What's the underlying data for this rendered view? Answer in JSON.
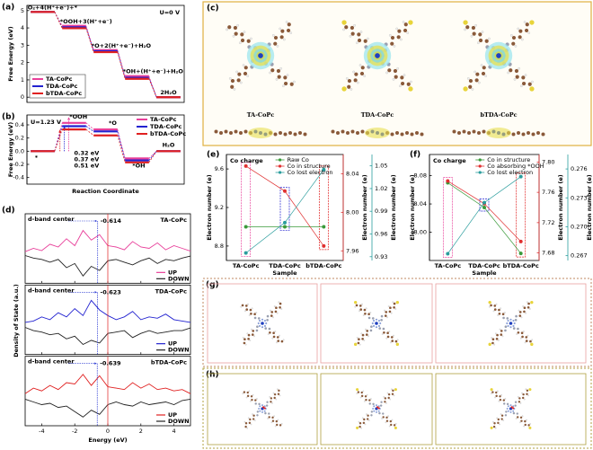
{
  "chart_data": [
    {
      "type": "step",
      "label": "(a)",
      "annotation": "U=0 V",
      "ylabel": "Free Energy (eV)",
      "ylim": [
        -0.3,
        5.3
      ],
      "yticks": [
        0,
        1,
        2,
        3,
        4,
        5
      ],
      "step_labels": [
        "O₂+4(H⁺+e⁻)+*",
        "*OOH+3(H⁺+e⁻)",
        "*O+2(H⁺+e⁻)+H₂O",
        "*OH+(H⁺+e⁻)+H₂O",
        "2H₂O"
      ],
      "series": [
        {
          "name": "TA-CoPc",
          "color": "#e8409a",
          "values": [
            4.92,
            4.12,
            2.72,
            1.22,
            0
          ]
        },
        {
          "name": "TDA-CoPc",
          "color": "#2222d0",
          "values": [
            4.92,
            4.04,
            2.66,
            1.12,
            0
          ]
        },
        {
          "name": "bTDA-CoPc",
          "color": "#e02020",
          "values": [
            4.92,
            3.98,
            2.6,
            1.06,
            0
          ]
        }
      ]
    },
    {
      "type": "step",
      "label": "(b)",
      "annotation": "U=1.23 V",
      "ylabel": "Free Energy (eV)",
      "xlabel": "Reaction Coordinate",
      "ylim": [
        -0.5,
        0.55
      ],
      "yticks": [
        -0.4,
        -0.2,
        {
          "value": 0,
          "label": "0.0"
        },
        0.2,
        0.4
      ],
      "step_labels": [
        "*",
        "*OOH",
        "*O",
        "*OH",
        "H₂O"
      ],
      "series": [
        {
          "name": "TA-CoPc",
          "color": "#e8409a",
          "values": [
            0,
            0.43,
            0.33,
            -0.11,
            0
          ],
          "overpotential": 0.51,
          "overpotential_label": "0.51 eV"
        },
        {
          "name": "TDA-CoPc",
          "color": "#2222d0",
          "values": [
            0,
            0.38,
            0.3,
            -0.14,
            0
          ],
          "overpotential": 0.37,
          "overpotential_label": "0.37 eV"
        },
        {
          "name": "bTDA-CoPc",
          "color": "#e02020",
          "values": [
            0,
            0.33,
            0.24,
            -0.17,
            0
          ],
          "overpotential": 0.32,
          "overpotential_label": "0.32 eV"
        }
      ]
    },
    {
      "type": "dos",
      "label": "(d)",
      "annotation": "d-band center",
      "xlabel": "Energy (eV)",
      "ylabel": "Density of State (a.u.)",
      "x": [
        -5,
        -4.5,
        -4,
        -3.5,
        -3,
        -2.5,
        -2,
        -1.5,
        -1,
        -0.5,
        0,
        0.5,
        1,
        1.5,
        2,
        2.5,
        3,
        3.5,
        4,
        4.5,
        5
      ],
      "xlim": [
        -5,
        5
      ],
      "xticks": [
        -4,
        -2,
        0,
        2,
        4
      ],
      "ylim": [
        -1,
        1
      ],
      "fermi_level": 0,
      "fermi_color": "#e02020",
      "center_color": "#2030d0",
      "up_label": "UP",
      "down_label": "DOWN",
      "down_color": "#222222",
      "panels": [
        {
          "name": "TA-CoPc",
          "color": "#e8409a",
          "d_band_center": -0.614,
          "up": [
            0.08,
            0.2,
            0.12,
            0.35,
            0.25,
            0.55,
            0.3,
            0.85,
            0.5,
            0.7,
            0.3,
            0.25,
            0.15,
            0.45,
            0.25,
            0.2,
            0.4,
            0.15,
            0.3,
            0.2,
            0.1
          ],
          "down": [
            -0.06,
            -0.15,
            -0.2,
            -0.3,
            -0.2,
            -0.5,
            -0.35,
            -0.8,
            -0.45,
            -0.6,
            -0.25,
            -0.2,
            -0.3,
            -0.4,
            -0.25,
            -0.15,
            -0.35,
            -0.2,
            -0.25,
            -0.15,
            -0.08
          ]
        },
        {
          "name": "TDA-CoPc",
          "color": "#2222d0",
          "d_band_center": -0.623,
          "up": [
            0.1,
            0.15,
            0.3,
            0.2,
            0.45,
            0.3,
            0.6,
            0.35,
            0.9,
            0.55,
            0.35,
            0.2,
            0.3,
            0.5,
            0.2,
            0.3,
            0.25,
            0.4,
            0.2,
            0.15,
            0.1
          ],
          "down": [
            -0.08,
            -0.2,
            -0.25,
            -0.35,
            -0.3,
            -0.5,
            -0.4,
            -0.7,
            -0.55,
            -0.65,
            -0.3,
            -0.25,
            -0.2,
            -0.45,
            -0.3,
            -0.2,
            -0.3,
            -0.25,
            -0.2,
            -0.2,
            -0.1
          ]
        },
        {
          "name": "bTDA-CoPc",
          "color": "#e02020",
          "d_band_center": -0.639,
          "up": [
            0.1,
            0.3,
            0.2,
            0.4,
            0.25,
            0.5,
            0.45,
            0.8,
            0.4,
            0.75,
            0.35,
            0.3,
            0.25,
            0.5,
            0.3,
            0.45,
            0.25,
            0.3,
            0.2,
            0.25,
            0.1
          ],
          "down": [
            -0.1,
            -0.2,
            -0.3,
            -0.25,
            -0.4,
            -0.35,
            -0.55,
            -0.75,
            -0.5,
            -0.65,
            -0.3,
            -0.2,
            -0.3,
            -0.35,
            -0.2,
            -0.3,
            -0.25,
            -0.2,
            -0.3,
            -0.15,
            -0.1
          ]
        }
      ]
    },
    {
      "type": "multi_axis_line",
      "label": "(e)",
      "annotation": "Co charge",
      "xlabel": "Sample",
      "categories": [
        "TA-CoPc",
        "TDA-CoPc",
        "bTDA-CoPc"
      ],
      "category_colors": [
        "#e8409a",
        "#2222d0",
        "#e02020"
      ],
      "ylabel": "Electron number (e)",
      "y2label": "Electron number (e)",
      "y3label": "Electron number (e)",
      "ylim": [
        8.65,
        9.75
      ],
      "yticks": [
        8.8,
        9.2,
        9.6
      ],
      "y2lim": [
        7.95,
        8.06
      ],
      "y2ticks": [
        7.96,
        {
          "value": 8,
          "label": "8.00"
        },
        8.04
      ],
      "y3lim": [
        0.925,
        1.065
      ],
      "y3ticks": [
        0.93,
        0.96,
        0.99,
        1.02,
        1.05
      ],
      "series": [
        {
          "name": "Raw Co",
          "color": "#3a9a3a",
          "axis": "y",
          "values": [
            9,
            9,
            9
          ]
        },
        {
          "name": "Co in structure",
          "color": "#e03030",
          "axis": "y2",
          "values": [
            8.048,
            8.022,
            7.965
          ]
        },
        {
          "name": "Co lost electron",
          "color": "#2a9d9d",
          "axis": "y3",
          "values": [
            0.935,
            0.975,
            1.045
          ]
        }
      ]
    },
    {
      "type": "multi_axis_line",
      "label": "(f)",
      "annotation": "Co charge",
      "xlabel": "Sample",
      "categories": [
        "TA-CoPc",
        "TDA-CoPc",
        "bTDA-CoPc"
      ],
      "category_colors": [
        "#e8409a",
        "#2222d0",
        "#e02020"
      ],
      "ylabel": "Electron number (e)",
      "y2label": "Electron number (e)",
      "y3label": "Electron number (e)",
      "ylim": [
        7.96,
        8.11
      ],
      "yticks": [
        {
          "value": 8,
          "label": "8.00"
        },
        8.04,
        8.08
      ],
      "y2lim": [
        7.67,
        7.81
      ],
      "y2ticks": [
        7.68,
        7.72,
        7.76,
        {
          "value": 7.8,
          "label": "7.80"
        }
      ],
      "y3lim": [
        0.2665,
        0.2775
      ],
      "y3ticks": [
        0.267,
        {
          "value": 0.27,
          "label": "0.270"
        },
        0.273,
        0.276
      ],
      "series": [
        {
          "name": "Co in structure",
          "color": "#3a9a3a",
          "axis": "y",
          "values": [
            8.07,
            8.035,
            7.97
          ]
        },
        {
          "name": "Co absorbing *OOH",
          "color": "#e03030",
          "axis": "y2",
          "values": [
            7.775,
            7.745,
            7.695
          ]
        },
        {
          "name": "Co lost electron",
          "color": "#2a9d9d",
          "axis": "y3",
          "values": [
            0.2672,
            0.2725,
            0.2752
          ]
        }
      ]
    }
  ],
  "panel_c": {
    "label": "(c)",
    "names": [
      "TA-CoPc",
      "TDA-CoPc",
      "bTDA-CoPc"
    ],
    "name_colors": [
      "#e8409a",
      "#2222d0",
      "#e02020"
    ]
  },
  "panel_g": {
    "label": "(g)"
  },
  "panel_h": {
    "label": "(h)"
  }
}
